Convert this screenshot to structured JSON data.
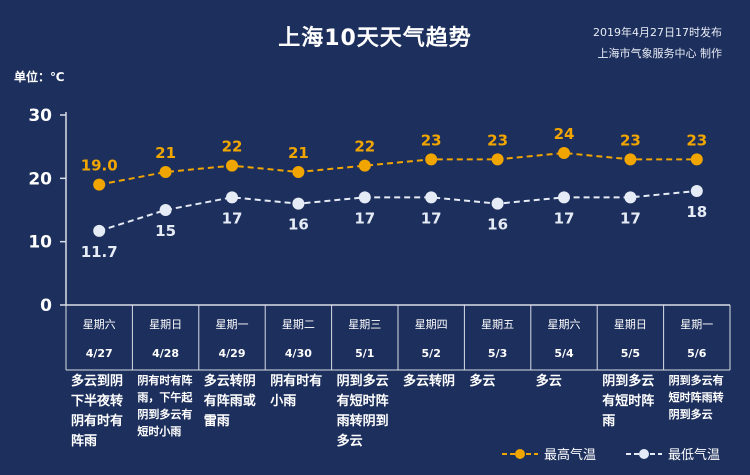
{
  "title": "上海10天天气趋势",
  "publish": {
    "time": "2019年4月27日17时发布",
    "source": "上海市气象服务中心  制作"
  },
  "unit_label": "单位：℃",
  "colors": {
    "background": "#1d2f5c",
    "high": "#f0a500",
    "low": "#e6ecf6",
    "grid": "#d9dde6"
  },
  "chart_data": {
    "type": "line",
    "ylim": [
      0,
      30
    ],
    "yticks": [
      "0",
      "10",
      "20",
      "30"
    ],
    "weekdays": [
      "星期六",
      "星期日",
      "星期一",
      "星期二",
      "星期三",
      "星期四",
      "星期五",
      "星期六",
      "星期日",
      "星期一"
    ],
    "dates": [
      "4/27",
      "4/28",
      "4/29",
      "4/30",
      "5/1",
      "5/2",
      "5/3",
      "5/4",
      "5/5",
      "5/6"
    ],
    "series": [
      {
        "name": "最高气温",
        "values": [
          19.0,
          21,
          22,
          21,
          22,
          23,
          23,
          24,
          23,
          23
        ],
        "labels": [
          "19.0",
          "21",
          "22",
          "21",
          "22",
          "23",
          "23",
          "24",
          "23",
          "23"
        ]
      },
      {
        "name": "最低气温",
        "values": [
          11.7,
          15,
          17,
          16,
          17,
          17,
          16,
          17,
          17,
          18
        ],
        "labels": [
          "11.7",
          "15",
          "17",
          "16",
          "17",
          "17",
          "16",
          "17",
          "17",
          "18"
        ]
      }
    ],
    "weather": [
      [
        "多云到阴",
        "下半夜转",
        "阴有时有",
        "阵雨"
      ],
      [
        "阴有时有阵",
        "雨，下午起",
        "阴到多云有",
        "短时小雨"
      ],
      [
        "多云转阴",
        "有阵雨或",
        "雷雨"
      ],
      [
        "阴有时有",
        "小雨"
      ],
      [
        "阴到多云",
        "有短时阵",
        "雨转阴到",
        "多云"
      ],
      [
        "多云转阴"
      ],
      [
        "多云"
      ],
      [
        "多云"
      ],
      [
        "阴到多云",
        "有短时阵",
        "雨"
      ],
      [
        "阴到多云有",
        "短时阵雨转",
        "阴到多云"
      ]
    ]
  }
}
